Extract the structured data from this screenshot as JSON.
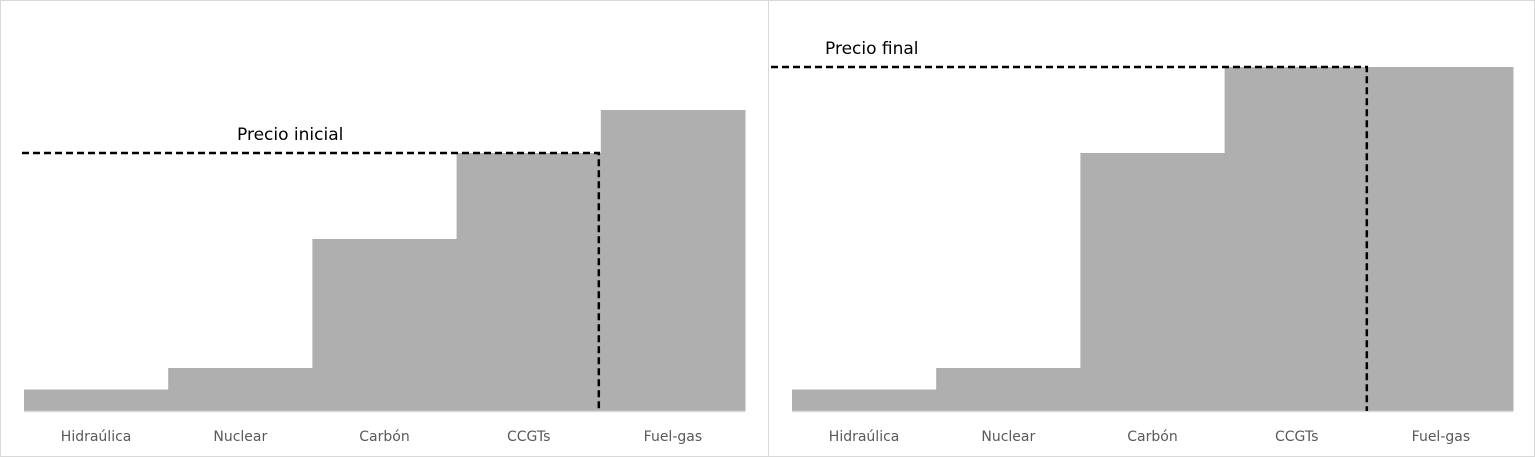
{
  "colors": {
    "bar": "#afafaf",
    "axis": "#d9d9d9",
    "price_line": "#000000",
    "tick_text": "#595959",
    "annotation_text": "#000000"
  },
  "chart_data": [
    {
      "type": "bar",
      "title": "",
      "xlabel": "",
      "ylabel": "",
      "categories": [
        "Hidraúlica",
        "Nuclear",
        "Carbón",
        "CCGTs",
        "Fuel-gas"
      ],
      "values": [
        1,
        2,
        8,
        12,
        14
      ],
      "ylim": [
        0,
        14
      ],
      "grid": false,
      "annotation": {
        "text": "Precio inicial",
        "price": 12,
        "stop_category": 4
      },
      "price_line_style": "dashed"
    },
    {
      "type": "bar",
      "title": "",
      "xlabel": "",
      "ylabel": "",
      "categories": [
        "Hidraúlica",
        "Nuclear",
        "Carbón",
        "CCGTs",
        "Fuel-gas"
      ],
      "values": [
        1,
        2,
        12,
        16,
        16
      ],
      "ylim": [
        0,
        16
      ],
      "grid": false,
      "annotation": {
        "text": "Precio final",
        "price": 16,
        "stop_category": 4
      },
      "price_line_style": "dashed"
    }
  ]
}
